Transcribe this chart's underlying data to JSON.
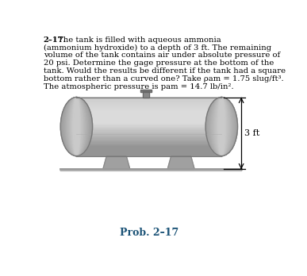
{
  "problem_text_line1_bold": "2–17.",
  "problem_text_line1_rest": "    The tank is filled with aqueous ammonia",
  "problem_text_lines": [
    "(ammonium hydroxide) to a depth of 3 ft. The remaining",
    "volume of the tank contains air under absolute pressure of",
    "20 psi. Determine the gage pressure at the bottom of the",
    "tank. Would the results be different if the tank had a square",
    "bottom rather than a curved one? Take ρam = 1.75 slug/ft³.",
    "The atmospheric pressure is pam = 14.7 lb/in²."
  ],
  "caption": "Prob. 2–17",
  "dimension_label": "3 ft",
  "bg_color": "#ffffff",
  "tank_body_light": "#d4d4d4",
  "tank_body_mid": "#bbbbbb",
  "tank_body_dark": "#9a9a9a",
  "tank_end_color": "#b8b8b8",
  "tank_end_dark": "#a0a0a0",
  "tank_outline": "#777777",
  "tank_inner_line": "#aaaaaa",
  "stand_color": "#a0a0a0",
  "stand_dark": "#888888",
  "floor_color": "#999999",
  "caption_color": "#1a5276",
  "valve_color": "#888888",
  "valve_dark": "#666666"
}
